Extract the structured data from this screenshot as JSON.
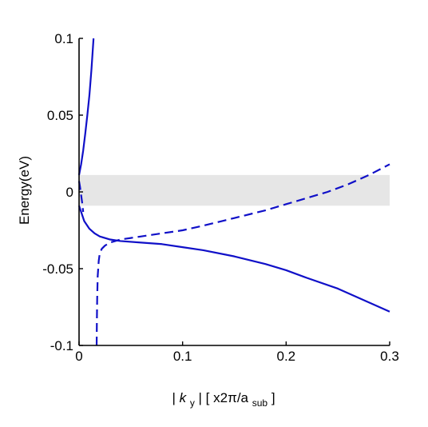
{
  "chart_data": {
    "type": "line",
    "title": "",
    "ylabel": "Energy(eV)",
    "xlabel": {
      "prefix": "| ",
      "k": "k",
      "k_sub": "y",
      "mid": " | [ x2π/a",
      "a_sub": "sub",
      "suffix": " ]"
    },
    "xlim": [
      0,
      0.3
    ],
    "ylim": [
      -0.1,
      0.1
    ],
    "x_ticks": [
      0,
      0.1,
      0.2,
      0.3
    ],
    "x_tick_labels": [
      "0",
      "0.1",
      "0.2",
      "0.3"
    ],
    "y_ticks": [
      -0.1,
      -0.05,
      0,
      0.05,
      0.1
    ],
    "y_tick_labels": [
      "-0.1",
      "-0.05",
      "0",
      "0.05",
      "0.1"
    ],
    "grid": false,
    "band": {
      "ymin": -0.009,
      "ymax": 0.011,
      "color": "#e6e6e6"
    },
    "colors": {
      "line": "#1010c8",
      "dashed_light": "#6a6ae0",
      "axis": "#000000"
    },
    "series": [
      {
        "style": "solid",
        "x": [
          0,
          0.002,
          0.004,
          0.006,
          0.008,
          0.01,
          0.012,
          0.013,
          0.014
        ],
        "y": [
          0.011,
          0.018,
          0.027,
          0.038,
          0.05,
          0.063,
          0.08,
          0.09,
          0.1
        ]
      },
      {
        "style": "solid",
        "x": [
          0,
          0.005,
          0.01,
          0.015,
          0.02,
          0.03,
          0.04,
          0.06,
          0.08,
          0.1,
          0.12,
          0.15,
          0.18,
          0.2,
          0.22,
          0.25,
          0.28,
          0.3
        ],
        "y": [
          -0.009,
          -0.019,
          -0.024,
          -0.027,
          -0.029,
          -0.031,
          -0.032,
          -0.033,
          -0.034,
          -0.036,
          -0.038,
          -0.042,
          -0.047,
          -0.051,
          -0.056,
          -0.063,
          -0.072,
          -0.078
        ]
      },
      {
        "style": "dashed",
        "x": [
          0,
          0.001,
          0.002,
          0.003,
          0.004
        ],
        "y": [
          0.007,
          0.003,
          -0.002,
          -0.007,
          -0.013
        ]
      },
      {
        "style": "dashed",
        "x": [
          0.017,
          0.0172,
          0.0175,
          0.018,
          0.019,
          0.02,
          0.022,
          0.025,
          0.03,
          0.035,
          0.04,
          0.05,
          0.06,
          0.08,
          0.1,
          0.12,
          0.15,
          0.18,
          0.2,
          0.22,
          0.24,
          0.26,
          0.28,
          0.3
        ],
        "y": [
          -0.1,
          -0.085,
          -0.07,
          -0.055,
          -0.045,
          -0.04,
          -0.037,
          -0.035,
          -0.033,
          -0.032,
          -0.031,
          -0.03,
          -0.029,
          -0.027,
          -0.025,
          -0.022,
          -0.017,
          -0.012,
          -0.008,
          -0.004,
          0.0,
          0.005,
          0.011,
          0.018
        ]
      }
    ]
  }
}
